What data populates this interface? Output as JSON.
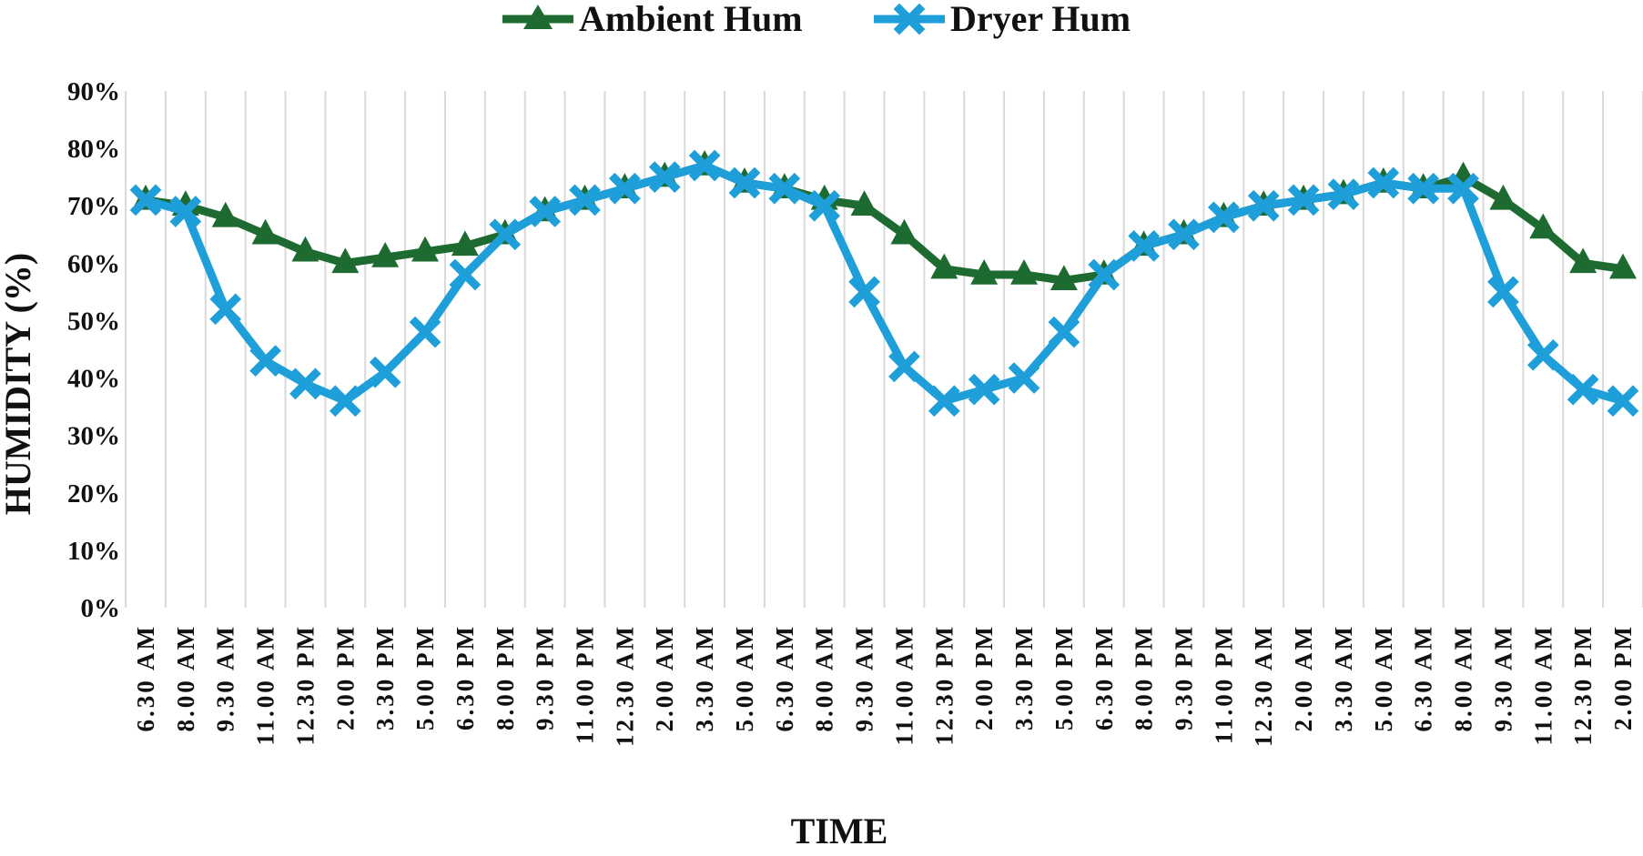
{
  "chart_data": {
    "type": "line",
    "xlabel": "TIME",
    "ylabel": "HUMIDITY (%)",
    "ylim": [
      0,
      90
    ],
    "yticks": [
      "0%",
      "10%",
      "20%",
      "30%",
      "40%",
      "50%",
      "60%",
      "70%",
      "80%",
      "90%"
    ],
    "grid": "vertical",
    "legend": "top-center",
    "categories": [
      "6.30  AM",
      "8.00  AM",
      "9.30  AM",
      "11.00  AM",
      "12.30  PM",
      "2.00  PM",
      "3.30  PM",
      "5.00  PM",
      "6.30  PM",
      "8.00  PM",
      "9.30  PM",
      "11.00  PM",
      "12.30  AM",
      "2.00  AM",
      "3.30  AM",
      "5.00  AM",
      "6.30  AM",
      "8.00  AM",
      "9.30  AM",
      "11.00  AM",
      "12.30  PM",
      "2.00  PM",
      "3.30  PM",
      "5.00  PM",
      "6.30  PM",
      "8.00  PM",
      "9.30  PM",
      "11.00  PM",
      "12.30  AM",
      "2.00  AM",
      "3.30  AM",
      "5.00  AM",
      "6.30  AM",
      "8.00  AM",
      "9.30  AM",
      "11.00  AM",
      "12.30  PM",
      "2.00  PM"
    ],
    "series": [
      {
        "name": "Ambient Hum",
        "color": "#1e6b32",
        "marker": "triangle",
        "values": [
          71,
          70,
          68,
          65,
          62,
          60,
          61,
          62,
          63,
          65,
          69,
          71,
          73,
          75,
          77,
          74,
          73,
          71,
          70,
          65,
          59,
          58,
          58,
          57,
          58,
          63,
          65,
          68,
          70,
          71,
          72,
          74,
          73,
          75,
          71,
          66,
          60,
          59
        ]
      },
      {
        "name": "Dryer Hum",
        "color": "#1f9fd9",
        "marker": "x",
        "values": [
          71,
          69,
          52,
          43,
          39,
          36,
          41,
          48,
          58,
          65,
          69,
          71,
          73,
          75,
          77,
          74,
          73,
          70,
          55,
          42,
          36,
          38,
          40,
          48,
          58,
          63,
          65,
          68,
          70,
          71,
          72,
          74,
          73,
          73,
          55,
          44,
          38,
          36
        ]
      }
    ]
  }
}
